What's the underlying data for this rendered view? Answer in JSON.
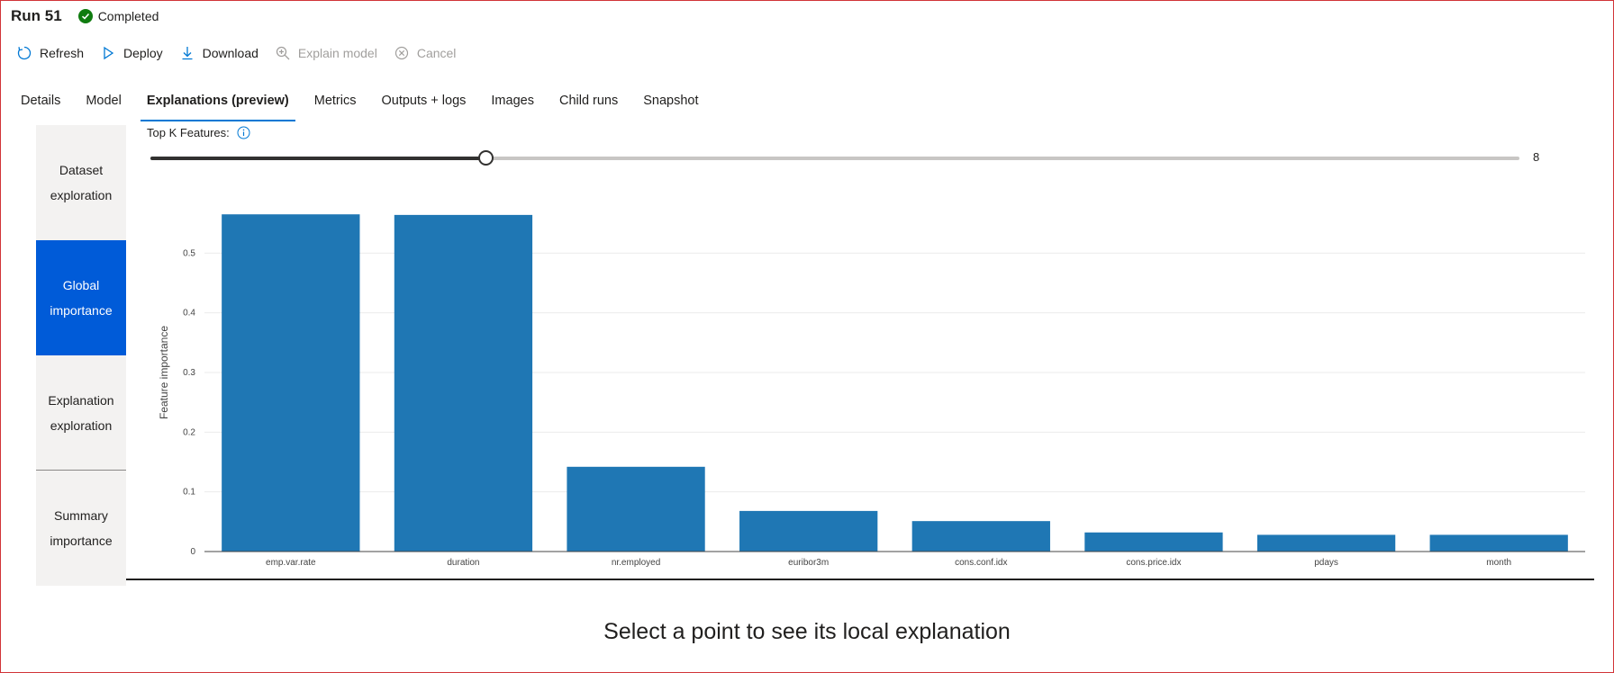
{
  "header": {
    "title": "Run 51",
    "status": "Completed"
  },
  "toolbar": {
    "refresh": "Refresh",
    "deploy": "Deploy",
    "download": "Download",
    "explain_model": "Explain model",
    "cancel": "Cancel"
  },
  "tabs": [
    "Details",
    "Model",
    "Explanations (preview)",
    "Metrics",
    "Outputs + logs",
    "Images",
    "Child runs",
    "Snapshot"
  ],
  "sidenav": {
    "items": [
      {
        "line1": "Dataset",
        "line2": "exploration"
      },
      {
        "line1": "Global",
        "line2": "importance"
      },
      {
        "line1": "Explanation",
        "line2": "exploration"
      },
      {
        "line1": "Summary",
        "line2": "importance"
      }
    ]
  },
  "topk": {
    "label": "Top K Features:",
    "value": "8",
    "fraction": 0.245
  },
  "colors": {
    "bar": "#1f77b4",
    "accent": "#0078d4",
    "nav_active": "#005bd8",
    "status": "#107c10"
  },
  "chart_data": {
    "type": "bar",
    "categories": [
      "emp.var.rate",
      "duration",
      "nr.employed",
      "euribor3m",
      "cons.conf.idx",
      "cons.price.idx",
      "pdays",
      "month"
    ],
    "values": [
      0.565,
      0.564,
      0.142,
      0.068,
      0.051,
      0.032,
      0.028,
      0.028
    ],
    "xlabel": "",
    "ylabel": "Feature importance",
    "ylim": [
      0,
      0.6
    ],
    "yticks": [
      "0",
      "0.1",
      "0.2",
      "0.3",
      "0.4",
      "0.5"
    ],
    "grid": true
  },
  "hint": "Select a point to see its local explanation"
}
